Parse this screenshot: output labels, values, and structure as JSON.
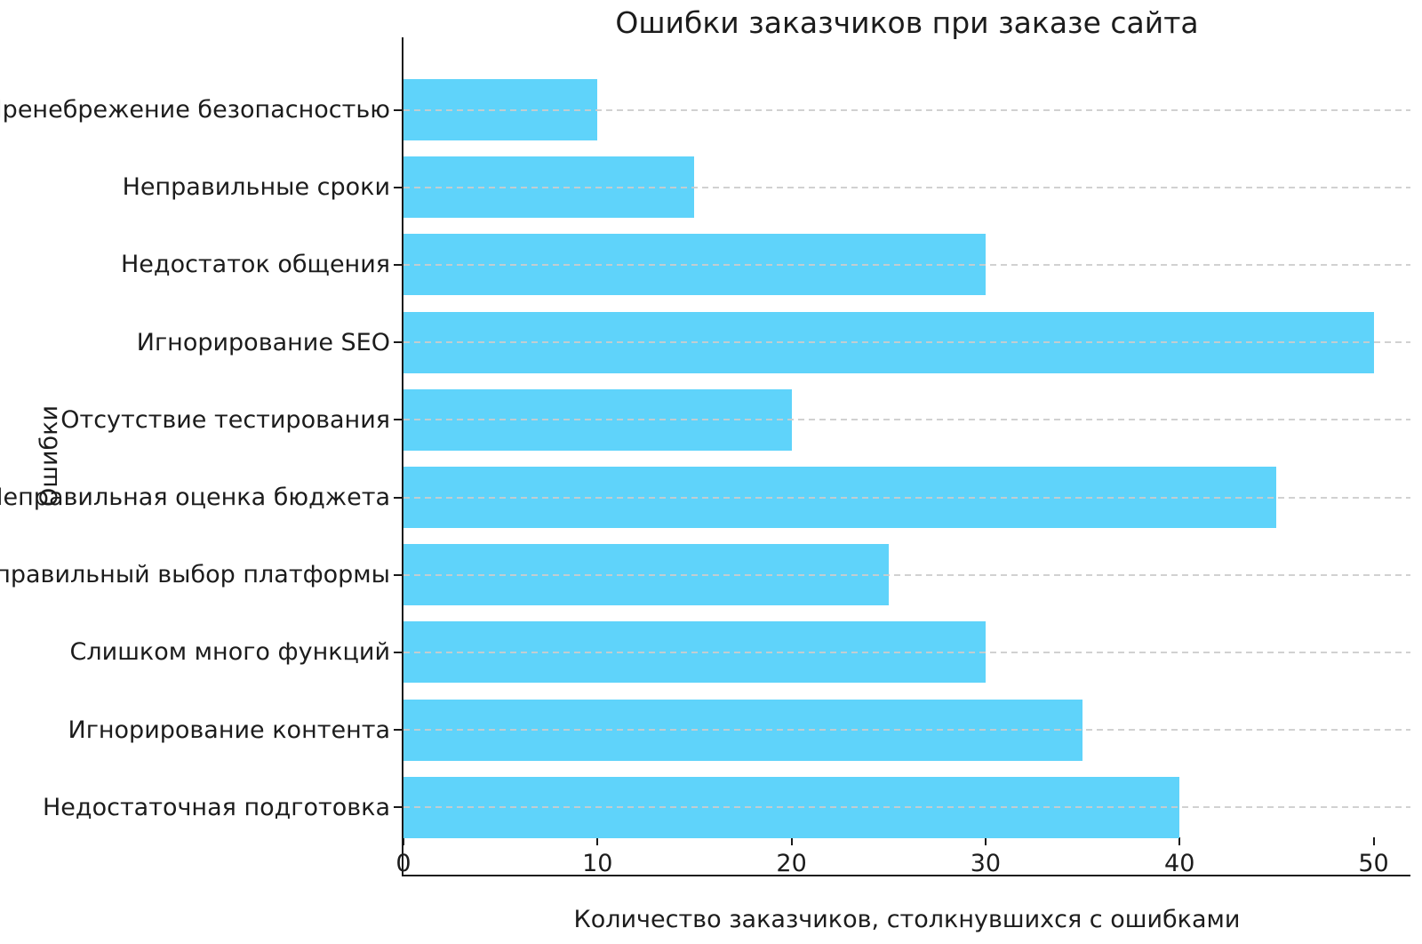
{
  "chart_data": {
    "type": "bar",
    "orientation": "horizontal",
    "title": "Ошибки заказчиков при заказе сайта",
    "xlabel": "Количество заказчиков, столкнувшихся с ошибками",
    "ylabel": "Ошибки",
    "categories": [
      "Пренебрежение безопасностью",
      "Неправильные сроки",
      "Недостаток общения",
      "Игнорирование SEO",
      "Отсутствие тестирования",
      "Неправильная оценка бюджета",
      "Неправильный выбор платформы",
      "Слишком много функций",
      "Игнорирование контента",
      "Недостаточная подготовка"
    ],
    "values": [
      10,
      15,
      30,
      50,
      20,
      45,
      25,
      30,
      35,
      40
    ],
    "x_ticks": [
      "0",
      "10",
      "20",
      "30",
      "40",
      "50"
    ],
    "x_tick_values": [
      0,
      10,
      20,
      30,
      40,
      50
    ],
    "xlim": [
      0,
      51.9
    ],
    "grid": "horizontal dashed, drawn over bars",
    "legend": null,
    "bar_color": "#5FD3FA",
    "grid_color": "#cccccc",
    "axis_color": "#1a1a1a",
    "text_color": "#1c1c1c",
    "background": "#ffffff"
  }
}
